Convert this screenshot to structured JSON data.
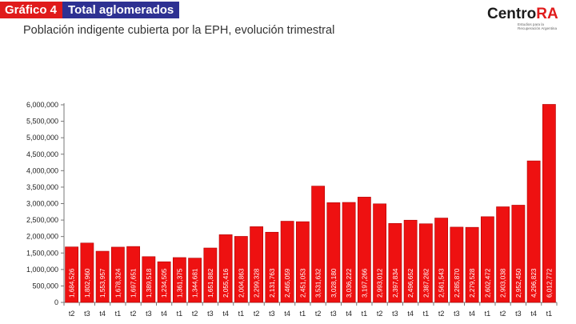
{
  "header": {
    "badge_number": "Gráfico 4",
    "badge_label": "Total aglomerados",
    "subtitle": "Población indigente cubierta por la EPH, evolución trimestral"
  },
  "logo": {
    "word_main": "Centro",
    "word_accent": "RA",
    "tagline": "Estudios para la Recuperación Argentina"
  },
  "colors": {
    "bar": "#ee1111",
    "bar_edge": "#b00000",
    "badge_red": "#e01b1b",
    "badge_blue": "#2e3192"
  },
  "chart_data": {
    "type": "bar",
    "title": "",
    "xlabel": "",
    "ylabel": "",
    "ylim": [
      0,
      6000000
    ],
    "y_ticks": [
      "0",
      "500,000",
      "1,000,000",
      "1,500,000",
      "2,000,000",
      "2,500,000",
      "3,000,000",
      "3,500,000",
      "4,000,000",
      "4,500,000",
      "5,000,000",
      "5,500,000",
      "6,000,000"
    ],
    "categories": [
      "t2",
      "t3",
      "t4",
      "t1",
      "t2",
      "t3",
      "t4",
      "t1",
      "t2",
      "t3",
      "t4",
      "t1",
      "t2",
      "t3",
      "t4",
      "t1",
      "t2",
      "t3",
      "t4",
      "t1",
      "t2",
      "t3",
      "t4",
      "t1",
      "t2",
      "t3",
      "t4",
      "t1",
      "t2",
      "t3",
      "t4",
      "t1"
    ],
    "values": [
      1684526,
      1802960,
      1553957,
      1678324,
      1697651,
      1389518,
      1234505,
      1361375,
      1344681,
      1651882,
      2055416,
      2004863,
      2299328,
      2131763,
      2465059,
      2451053,
      3531632,
      3028180,
      3036222,
      3197266,
      2993012,
      2397834,
      2496652,
      2387282,
      2561543,
      2285870,
      2279528,
      2602472,
      2903038,
      2952450,
      4296823,
      6012772
    ],
    "value_labels": [
      "1,684,526",
      "1,802,960",
      "1,553,957",
      "1,678,324",
      "1,697,651",
      "1,389,518",
      "1,234,505",
      "1,361,375",
      "1,344,681",
      "1,651,882",
      "2,055,416",
      "2,004,863",
      "2,299,328",
      "2,131,763",
      "2,465,059",
      "2,451,053",
      "3,531,632",
      "3,028,180",
      "3,036,222",
      "3,197,266",
      "2,993,012",
      "2,397,834",
      "2,496,652",
      "2,387,282",
      "2,561,543",
      "2,285,870",
      "2,279,528",
      "2,602,472",
      "2,903,038",
      "2,952,450",
      "4,296,823",
      "6,012,772"
    ],
    "grid": false,
    "legend": "none"
  }
}
